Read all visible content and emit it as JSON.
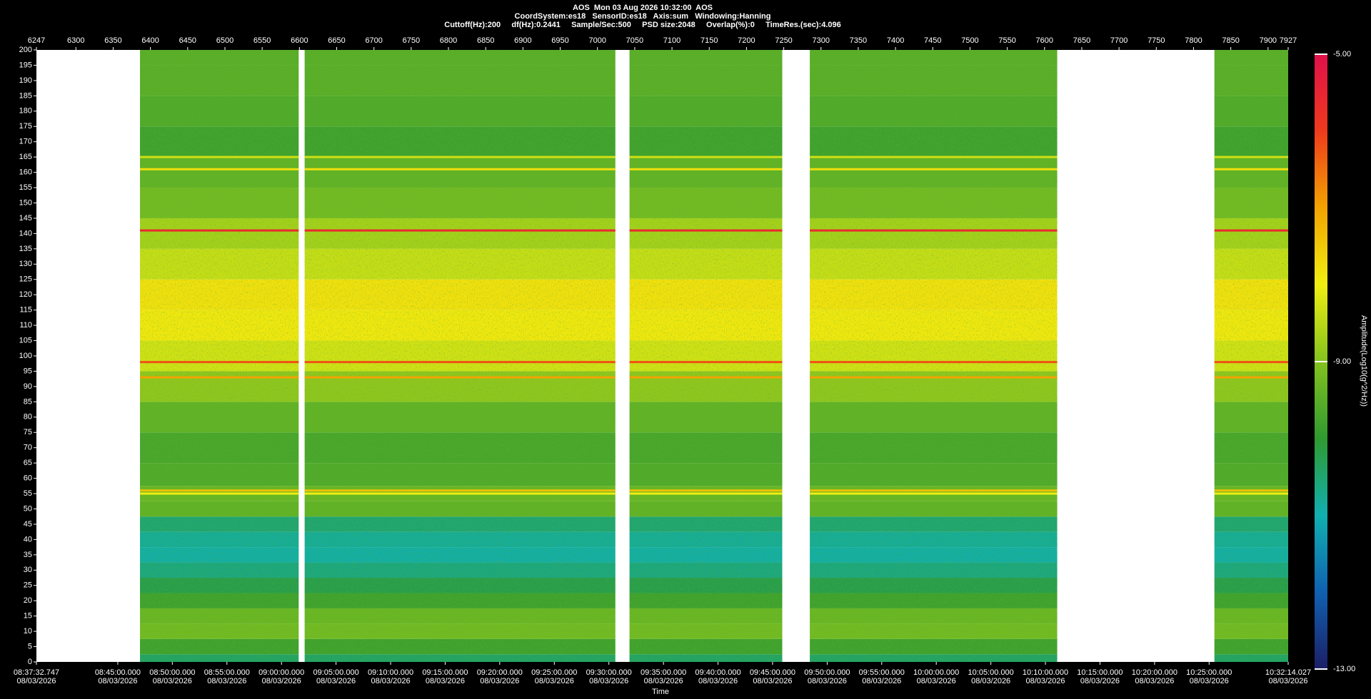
{
  "chart_data": {
    "type": "spectrogram",
    "title": "AOS  Mon 03 Aug 2026 10:32:00  AOS",
    "subtitle": "CoordSystem:es18   SensorID:es18   Axis:sum   Windowing:Hanning",
    "parameters": "Cuttoff(Hz):200     df(Hz):0.2441     Sample/Sec:500     PSD size:2048     Overlap(%):0     TimeRes.(sec):4.096",
    "x_label": "Time",
    "colorbar_label": "Amplitude(Log10(g^2/Hz))",
    "xlim": [
      6247,
      7927
    ],
    "xticks": [
      6247,
      6300,
      6350,
      6400,
      6450,
      6500,
      6550,
      6600,
      6650,
      6700,
      6750,
      6800,
      6850,
      6900,
      6950,
      7000,
      7050,
      7100,
      7150,
      7200,
      7250,
      7300,
      7350,
      7400,
      7450,
      7500,
      7550,
      7600,
      7650,
      7700,
      7750,
      7800,
      7850,
      7900,
      7927
    ],
    "x2ticks": [
      {
        "value": 6247,
        "label": "08:37:32.747"
      },
      {
        "value": 6356.2,
        "label": "08:45:00.000"
      },
      {
        "value": 6429.4,
        "label": "08:50:00.000"
      },
      {
        "value": 6502.7,
        "label": "08:55:00.000"
      },
      {
        "value": 6575.9,
        "label": "09:00:00.000"
      },
      {
        "value": 6649.1,
        "label": "09:05:00.000"
      },
      {
        "value": 6722.4,
        "label": "09:10:00.000"
      },
      {
        "value": 6795.6,
        "label": "09:15:00.000"
      },
      {
        "value": 6868.8,
        "label": "09:20:00.000"
      },
      {
        "value": 6942.1,
        "label": "09:25:00.000"
      },
      {
        "value": 7015.3,
        "label": "09:30:00.000"
      },
      {
        "value": 7088.6,
        "label": "09:35:00.000"
      },
      {
        "value": 7161.8,
        "label": "09:40:00.000"
      },
      {
        "value": 7235.0,
        "label": "09:45:00.000"
      },
      {
        "value": 7308.3,
        "label": "09:50:00.000"
      },
      {
        "value": 7381.5,
        "label": "09:55:00.000"
      },
      {
        "value": 7454.7,
        "label": "10:00:00.000"
      },
      {
        "value": 7528.0,
        "label": "10:05:00.000"
      },
      {
        "value": 7601.2,
        "label": "10:10:00.000"
      },
      {
        "value": 7674.4,
        "label": "10:15:00.000"
      },
      {
        "value": 7747.7,
        "label": "10:20:00.000"
      },
      {
        "value": 7820.9,
        "label": "10:25:00.000"
      },
      {
        "value": 7927,
        "label": "10:32:14.027"
      }
    ],
    "x2_dates": [
      "08/03/2026",
      "08/03/2026",
      "08/03/2026",
      "08/03/2026",
      "08/03/2026",
      "08/03/2026",
      "08/03/2026",
      "08/03/2026",
      "08/03/2026",
      "08/03/2026",
      "08/03/2026",
      "08/03/2026",
      "08/03/2026",
      "08/03/2026",
      "08/03/2026",
      "08/03/2026",
      "08/03/2026",
      "08/03/2026",
      "08/03/2026",
      "08/03/2026",
      "08/03/2026",
      "08/03/2026",
      "08/03/2026"
    ],
    "ylim": [
      0,
      200
    ],
    "yticks": [
      0,
      5,
      10,
      15,
      20,
      25,
      30,
      35,
      40,
      45,
      50,
      55,
      60,
      65,
      70,
      75,
      80,
      85,
      90,
      95,
      100,
      105,
      110,
      115,
      120,
      125,
      130,
      135,
      140,
      145,
      150,
      155,
      160,
      165,
      170,
      175,
      180,
      185,
      190,
      195,
      200
    ],
    "clim": [
      -13,
      -5
    ],
    "cticks": [
      {
        "value": -5,
        "label": "-5.00"
      },
      {
        "value": -9,
        "label": "-9.00"
      },
      {
        "value": -13,
        "label": "-13.00"
      }
    ],
    "colormap": [
      "#1c1f66",
      "#1060b0",
      "#10b0b0",
      "#2f9a30",
      "#84c21e",
      "#f0ef10",
      "#f3a300",
      "#ef3a1c",
      "#e0104a"
    ],
    "segments": [
      [
        6386,
        6599
      ],
      [
        6607,
        7024
      ],
      [
        7043,
        7248
      ],
      [
        7285,
        7617
      ],
      [
        7828,
        7927
      ]
    ],
    "profile": {
      "freq": [
        0,
        5,
        10,
        15,
        20,
        25,
        30,
        35,
        40,
        45,
        50,
        55,
        60,
        70,
        80,
        90,
        100,
        110,
        120,
        130,
        140,
        150,
        160,
        170,
        180,
        190,
        200
      ],
      "amplitude": [
        -10.4,
        -9.8,
        -9.2,
        -9.3,
        -9.8,
        -10.2,
        -10.6,
        -10.9,
        -10.8,
        -10.5,
        -9.4,
        -9.3,
        -9.6,
        -9.7,
        -9.4,
        -8.9,
        -8.3,
        -7.9,
        -7.8,
        -8.4,
        -8.7,
        -9.2,
        -9.4,
        -9.8,
        -9.6,
        -9.5,
        -9.5
      ]
    },
    "lines": {
      "freq": [
        141,
        98,
        93,
        56,
        55,
        161,
        165
      ],
      "amplitude": [
        -5.6,
        -6.2,
        -7.0,
        -7.4,
        -8.0,
        -7.8,
        -8.3
      ]
    }
  }
}
